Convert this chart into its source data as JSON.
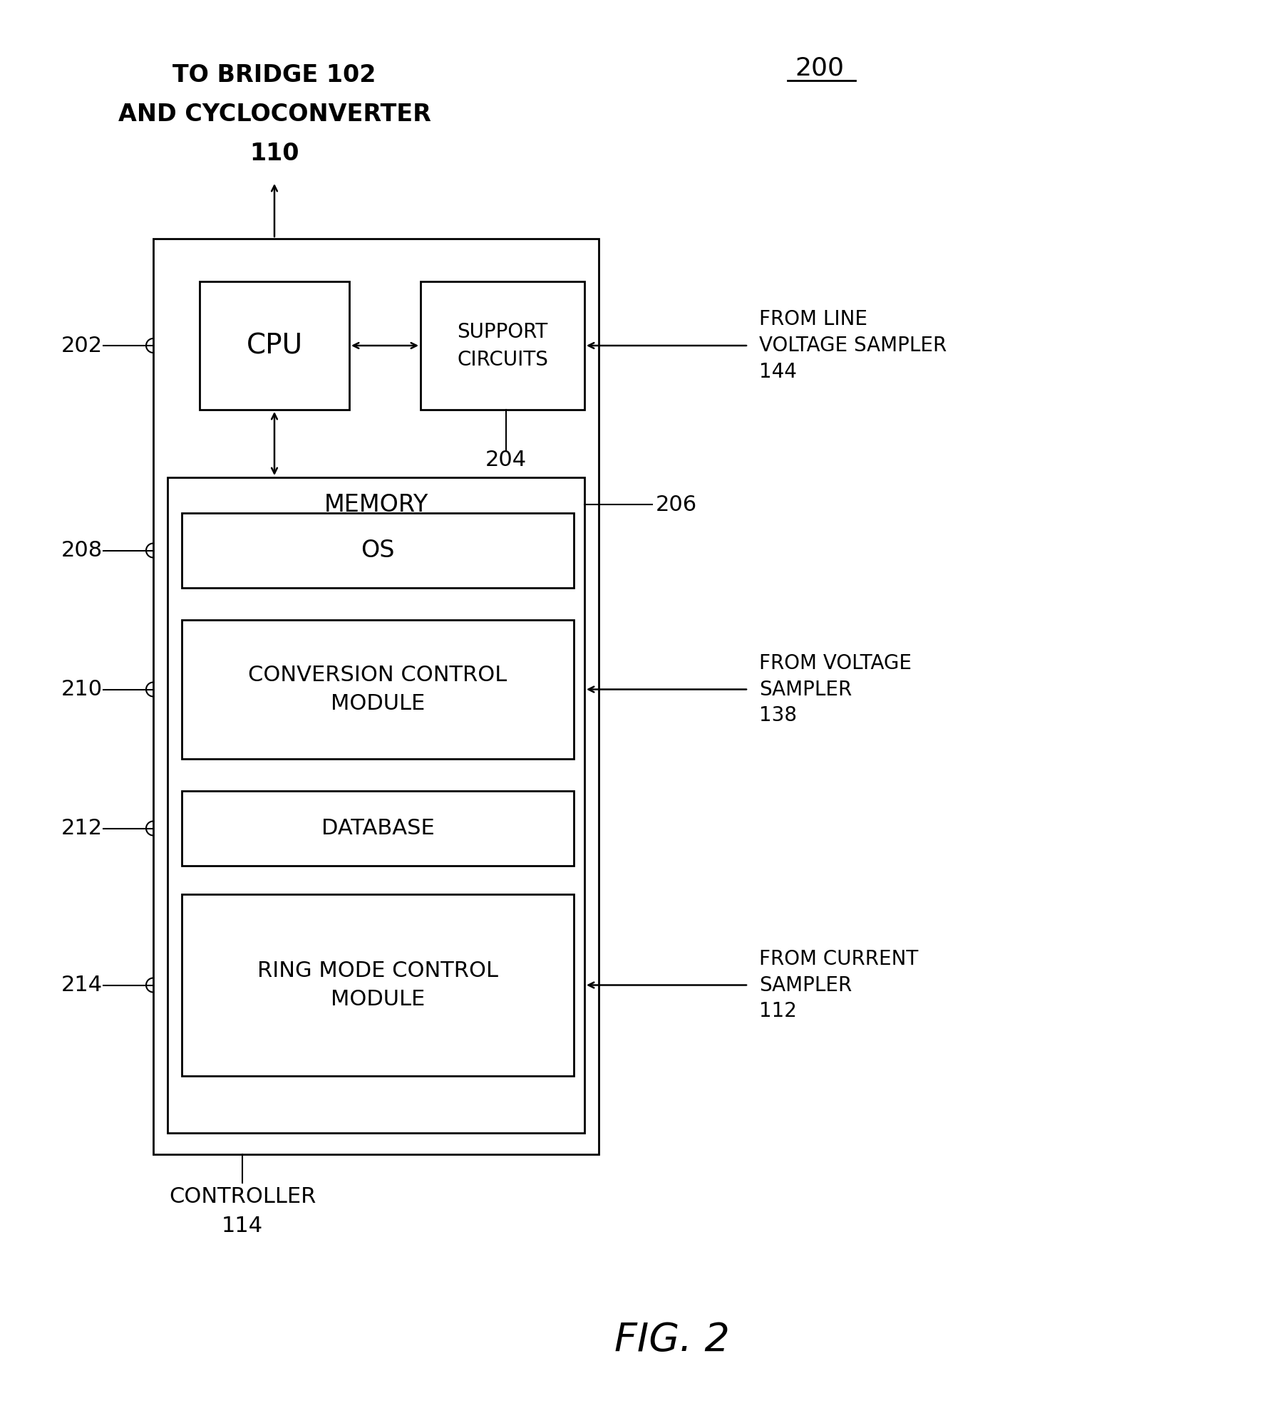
{
  "fig_width": 17.86,
  "fig_height": 19.69,
  "dpi": 100,
  "bg_color": "#ffffff",
  "text_color": "#000000",
  "box_edge_color": "#000000",
  "box_face_color": "#ffffff",
  "line_color": "#000000",
  "diagram_number": "200",
  "top_line1": "TO BRIDGE 102",
  "top_line2": "AND CYCLOCONVERTER",
  "top_line3": "110",
  "cpu_label": "CPU",
  "support_label": "SUPPORT\nCIRCUITS",
  "label_202": "202",
  "label_204": "204",
  "memory_label": "MEMORY",
  "label_206": "206",
  "os_label": "OS",
  "label_208": "208",
  "ccm_label": "CONVERSION CONTROL\nMODULE",
  "label_210": "210",
  "db_label": "DATABASE",
  "label_212": "212",
  "rmcm_label": "RING MODE CONTROL\nMODULE",
  "label_214": "214",
  "right_lv": "FROM LINE\nVOLTAGE SAMPLER\n144",
  "right_vs": "FROM VOLTAGE\nSAMPLER\n138",
  "right_cs": "FROM CURRENT\nSAMPLER\n112",
  "controller_label": "CONTROLLER\n114",
  "fig_label": "FIG. 2"
}
